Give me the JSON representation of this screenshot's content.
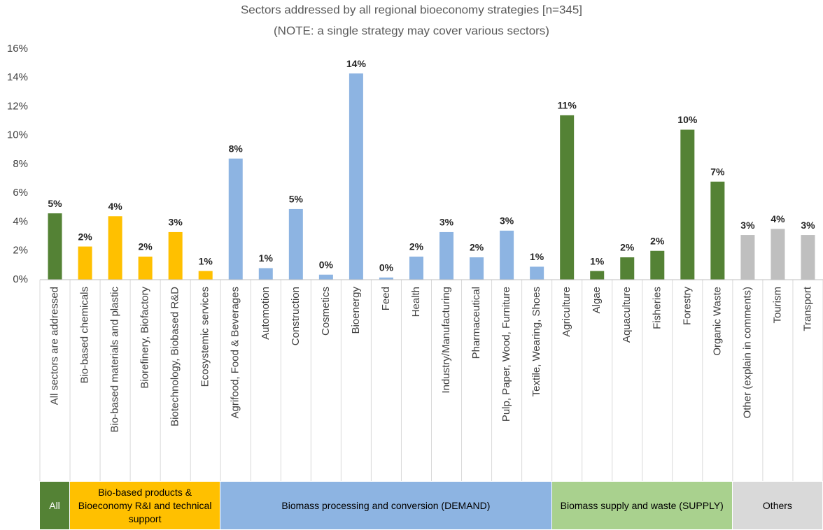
{
  "chart_data": {
    "type": "bar",
    "title": "Sectors addressed by all regional bioeconomy strategies [n=345]",
    "subtitle": "(NOTE: a single strategy may cover various sectors)",
    "ylim": [
      0,
      16
    ],
    "yticks": [
      {
        "value": 0,
        "label": "0%"
      },
      {
        "value": 2,
        "label": "2%"
      },
      {
        "value": 4,
        "label": "4%"
      },
      {
        "value": 6,
        "label": "6%"
      },
      {
        "value": 8,
        "label": "8%"
      },
      {
        "value": 10,
        "label": "10%"
      },
      {
        "value": 12,
        "label": "12%"
      },
      {
        "value": 14,
        "label": "14%"
      },
      {
        "value": 16,
        "label": "16%"
      }
    ],
    "grid": false,
    "groups": [
      {
        "name": "All",
        "color": "#548235",
        "box_color": "#548235",
        "text_color": "#ffffff",
        "categories": [
          "All sectors are addressed"
        ],
        "values": [
          4.6
        ],
        "value_labels": [
          "5%"
        ]
      },
      {
        "name": "Bio-based products & Bioeconomy R&I and technical support",
        "color": "#ffc000",
        "box_color": "#ffc000",
        "text_color": "#000000",
        "categories": [
          "Bio-based chemicals",
          "Bio-based materials and plastic",
          "Biorefinery, Biofactory",
          "Biotechnology, Biobased R&D",
          "Ecosystemic services"
        ],
        "values": [
          2.3,
          4.4,
          1.6,
          3.3,
          0.6
        ],
        "value_labels": [
          "2%",
          "4%",
          "2%",
          "3%",
          "1%"
        ]
      },
      {
        "name": "Biomass processing and conversion (DEMAND)",
        "color": "#8db4e2",
        "box_color": "#8db4e2",
        "text_color": "#000000",
        "categories": [
          "Agrifood, Food & Beverages",
          "Automotion",
          "Construction",
          "Cosmetics",
          "Bioenergy",
          "Feed",
          "Health",
          "Industry/Manufacturing",
          "Pharmaceutical",
          "Pulp, Paper, Wood, Furniture",
          "Textile, Wearing, Shoes"
        ],
        "values": [
          8.4,
          0.8,
          4.9,
          0.35,
          14.3,
          0.15,
          1.6,
          3.3,
          1.55,
          3.4,
          0.9
        ],
        "value_labels": [
          "8%",
          "1%",
          "5%",
          "0%",
          "14%",
          "0%",
          "2%",
          "3%",
          "2%",
          "3%",
          "1%"
        ]
      },
      {
        "name": "Biomass supply and waste (SUPPLY)",
        "color": "#548235",
        "box_color": "#a9d18e",
        "text_color": "#000000",
        "categories": [
          "Agriculture",
          "Algae",
          "Aquaculture",
          "Fisheries",
          "Forestry",
          "Organic Waste"
        ],
        "values": [
          11.4,
          0.6,
          1.55,
          2.0,
          10.4,
          6.8
        ],
        "value_labels": [
          "11%",
          "1%",
          "2%",
          "2%",
          "10%",
          "7%"
        ]
      },
      {
        "name": "Others",
        "color": "#bfbfbf",
        "box_color": "#d9d9d9",
        "text_color": "#000000",
        "categories": [
          "Other (explain in comments)",
          "Tourism",
          "Transport"
        ],
        "values": [
          3.1,
          3.52,
          3.1
        ],
        "value_labels": [
          "3%",
          "4%",
          "3%"
        ]
      }
    ]
  }
}
